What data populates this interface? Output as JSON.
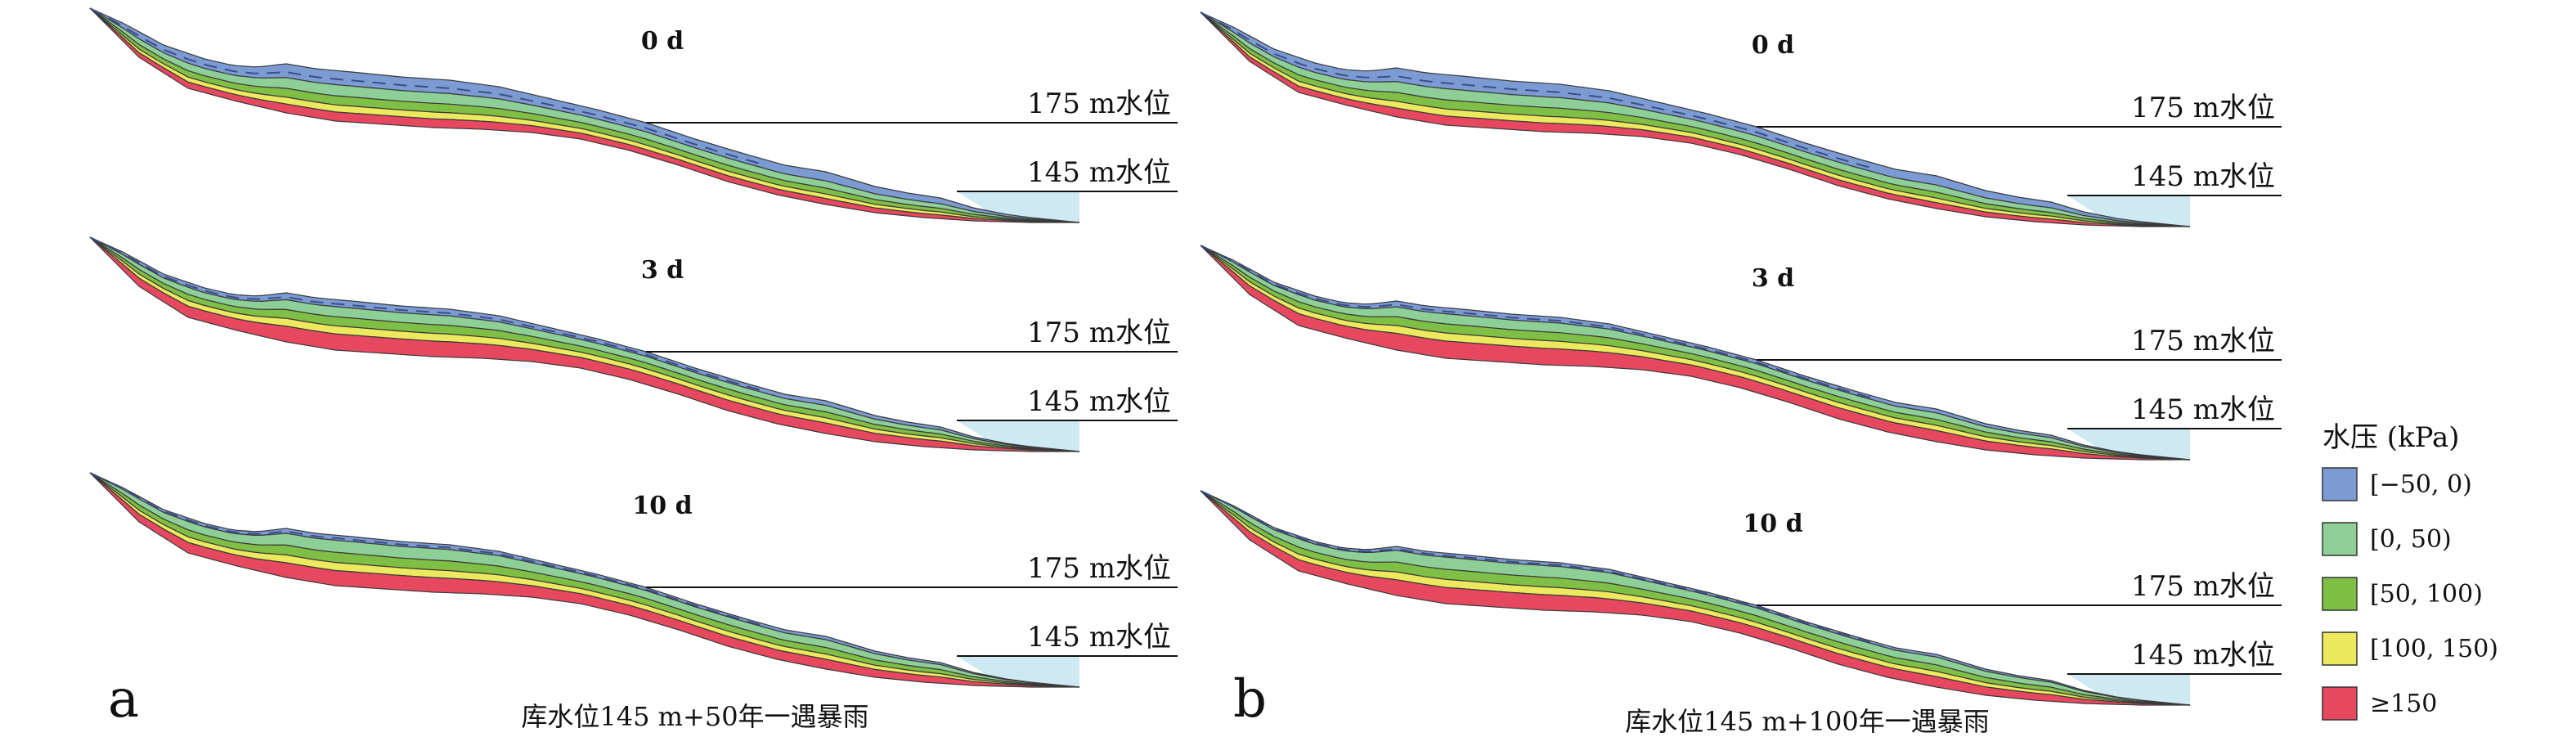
{
  "figure": {
    "panels": [
      {
        "letter": "a",
        "caption": "库水位145 m+50年一遇暴雨",
        "times": [
          {
            "time_label": "0 d",
            "upper_wl": "175 m水位",
            "lower_wl": "145 m水位",
            "bands": [
              0.28,
              0.22,
              0.18,
              0.14,
              0.18
            ]
          },
          {
            "time_label": "3 d",
            "upper_wl": "175 m水位",
            "lower_wl": "145 m水位",
            "bands": [
              0.14,
              0.2,
              0.18,
              0.16,
              0.32
            ]
          },
          {
            "time_label": "10 d",
            "upper_wl": "175 m水位",
            "lower_wl": "145 m水位",
            "bands": [
              0.1,
              0.24,
              0.2,
              0.16,
              0.3
            ]
          }
        ]
      },
      {
        "letter": "b",
        "caption": "库水位145 m+100年一遇暴雨",
        "times": [
          {
            "time_label": "0 d",
            "upper_wl": "175 m水位",
            "lower_wl": "145 m水位",
            "bands": [
              0.28,
              0.22,
              0.18,
              0.14,
              0.18
            ]
          },
          {
            "time_label": "3 d",
            "upper_wl": "175 m水位",
            "lower_wl": "145 m水位",
            "bands": [
              0.12,
              0.2,
              0.18,
              0.16,
              0.34
            ]
          },
          {
            "time_label": "10 d",
            "upper_wl": "175 m水位",
            "lower_wl": "145 m水位",
            "bands": [
              0.08,
              0.24,
              0.2,
              0.16,
              0.32
            ]
          }
        ]
      }
    ],
    "legend": {
      "title": "水压 (kPa)",
      "items": [
        {
          "label": "[−50, 0)",
          "color": "#7c9bd3"
        },
        {
          "label": "[0, 50)",
          "color": "#8ecf97"
        },
        {
          "label": "[50, 100)",
          "color": "#7fbf45"
        },
        {
          "label": "[100, 150)",
          "color": "#ece95e"
        },
        {
          "label": "≥150",
          "color": "#e5485f"
        }
      ]
    },
    "water_color": "#cfe9f3"
  }
}
